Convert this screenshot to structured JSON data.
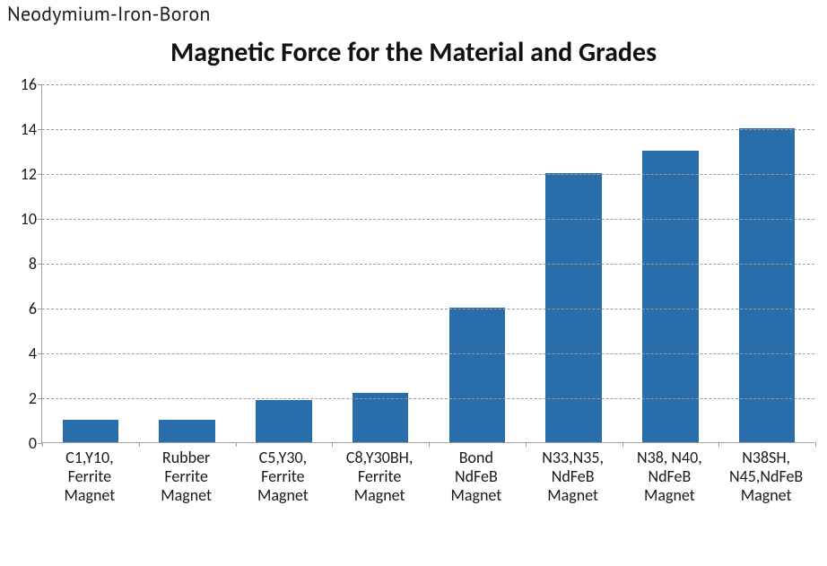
{
  "header": {
    "label": "Neodymium-Iron-Boron",
    "fontsize": 22,
    "color": "#1a1a1a"
  },
  "chart": {
    "type": "bar",
    "title": "Magnetic Force for the Material and Grades",
    "title_fontsize": 30,
    "title_fontweight": 700,
    "title_color": "#111111",
    "background_color": "#ffffff",
    "axis_color": "#a0a0a0",
    "grid_color": "#9c9c9c",
    "grid_dash": "dashed",
    "font_family": "Calibri",
    "label_fontsize": 18,
    "label_color": "#1a1a1a",
    "ylim": [
      0,
      16
    ],
    "ytick_step": 2,
    "yticks": [
      0,
      2,
      4,
      6,
      8,
      10,
      12,
      14,
      16
    ],
    "bar_color": "#2a6dab",
    "bar_width_ratio": 0.58,
    "categories": [
      "C1,Y10,\nFerrite\nMagnet",
      "Rubber\nFerrite\nMagnet",
      "C5,Y30,\nFerrite\nMagnet",
      "C8,Y30BH,\nFerrite\nMagnet",
      "Bond\nNdFeB\nMagnet",
      "N33,N35,\nNdFeB\nMagnet",
      "N38, N40,\nNdFeB\nMagnet",
      "N38SH,\nN45,NdFeB\nMagnet"
    ],
    "values": [
      1.0,
      1.0,
      1.9,
      2.2,
      6.0,
      12.0,
      13.0,
      14.0
    ]
  }
}
